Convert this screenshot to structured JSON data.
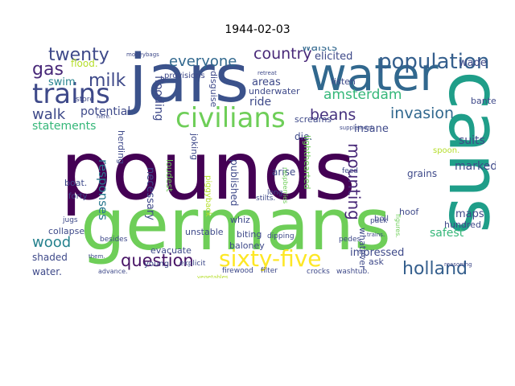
{
  "title": "1944-02-03",
  "words": [
    {
      "text": "pounds",
      "color": "#440154"
    },
    {
      "text": "germans",
      "color": "#6ece58"
    },
    {
      "text": "cans",
      "color": "#1f9e89"
    },
    {
      "text": "jars",
      "color": "#3b528b"
    },
    {
      "text": "water",
      "color": "#31688e"
    },
    {
      "text": "civilians",
      "color": "#6ece58"
    },
    {
      "text": "trains",
      "color": "#3e4989"
    },
    {
      "text": "population",
      "color": "#355f8d"
    },
    {
      "text": "sixty-five",
      "color": "#fde725"
    },
    {
      "text": "twenty",
      "color": "#3e4989"
    },
    {
      "text": "gas",
      "color": "#482878"
    },
    {
      "text": "milk",
      "color": "#3e4989"
    },
    {
      "text": "question",
      "color": "#471365"
    },
    {
      "text": "holland",
      "color": "#355f8d"
    },
    {
      "text": "country",
      "color": "#482878"
    },
    {
      "text": "everyone",
      "color": "#31688e"
    },
    {
      "text": "amsterdam",
      "color": "#35b779"
    },
    {
      "text": "beans",
      "color": "#46327e"
    },
    {
      "text": "invasion",
      "color": "#31688e"
    },
    {
      "text": "mounting",
      "color": "#482878"
    },
    {
      "text": "walk",
      "color": "#3e4989"
    },
    {
      "text": "wood",
      "color": "#26828e"
    },
    {
      "text": "impossible",
      "color": "#35b779"
    },
    {
      "text": "potential",
      "color": "#3e4989"
    },
    {
      "text": "statements",
      "color": "#35b779"
    },
    {
      "text": "flooding",
      "color": "#3e4989"
    },
    {
      "text": "responses",
      "color": "#2a788e"
    },
    {
      "text": "swim",
      "color": "#26828e"
    },
    {
      "text": "elicited",
      "color": "#3e4989"
    },
    {
      "text": "waists",
      "color": "#31688e"
    },
    {
      "text": "wade",
      "color": "#3e4989"
    },
    {
      "text": "ride",
      "color": "#3e4989"
    },
    {
      "text": "areas",
      "color": "#3e4989"
    },
    {
      "text": "insane",
      "color": "#3e4989"
    },
    {
      "text": "suits",
      "color": "#3e4989"
    },
    {
      "text": "marked",
      "color": "#3e4989"
    },
    {
      "text": "maps",
      "color": "#3e4989"
    },
    {
      "text": "safest",
      "color": "#35b779"
    },
    {
      "text": "impressed",
      "color": "#3e4989"
    },
    {
      "text": "shaded",
      "color": "#3e4989"
    },
    {
      "text": "water.",
      "color": "#3e4989"
    },
    {
      "text": "collapse",
      "color": "#3e4989"
    },
    {
      "text": "evacuate",
      "color": "#3e4989"
    },
    {
      "text": "unstable",
      "color": "#3e4989"
    },
    {
      "text": "necessary",
      "color": "#3e4989"
    },
    {
      "text": "published",
      "color": "#3e4989"
    },
    {
      "text": "whiz",
      "color": "#3e4989"
    },
    {
      "text": "biting",
      "color": "#3e4989"
    },
    {
      "text": "baloney",
      "color": "#3e4989"
    },
    {
      "text": "arise",
      "color": "#3e4989"
    },
    {
      "text": "die.",
      "color": "#3e4989"
    },
    {
      "text": "screams",
      "color": "#3e4989"
    },
    {
      "text": "listen",
      "color": "#3e4989"
    },
    {
      "text": "banter",
      "color": "#3e4989"
    },
    {
      "text": "grains",
      "color": "#3e4989"
    },
    {
      "text": "whatever",
      "color": "#3e4989"
    },
    {
      "text": "hundred",
      "color": "#3e4989"
    },
    {
      "text": "boil",
      "color": "#3e4989"
    },
    {
      "text": "hoof",
      "color": "#3e4989"
    },
    {
      "text": "ask",
      "color": "#3e4989"
    },
    {
      "text": "joking",
      "color": "#3e4989"
    },
    {
      "text": "loudest",
      "color": "#6ece58"
    },
    {
      "text": "herding",
      "color": "#3e4989"
    },
    {
      "text": "disguise",
      "color": "#3e4989"
    },
    {
      "text": "underwater",
      "color": "#3e4989"
    },
    {
      "text": "provisions",
      "color": "#3e4989"
    },
    {
      "text": "lighthearted",
      "color": "#6ece58"
    },
    {
      "text": "spoon.",
      "color": "#b5de2b"
    },
    {
      "text": "boat.",
      "color": "#3e4989"
    },
    {
      "text": "forty",
      "color": "#3e4989"
    },
    {
      "text": "young.",
      "color": "#3e4989"
    },
    {
      "text": "advance.",
      "color": "#3e4989"
    },
    {
      "text": "explicit",
      "color": "#3e4989"
    },
    {
      "text": "firewood",
      "color": "#3e4989"
    },
    {
      "text": "filter",
      "color": "#3e4989"
    },
    {
      "text": "crocks",
      "color": "#3e4989"
    },
    {
      "text": "washtub.",
      "color": "#3e4989"
    },
    {
      "text": "besides",
      "color": "#3e4989"
    },
    {
      "text": "jugs",
      "color": "#3e4989"
    },
    {
      "text": "dipping",
      "color": "#3e4989"
    },
    {
      "text": "stilts.",
      "color": "#3e4989"
    },
    {
      "text": "piggyback",
      "color": "#b5de2b"
    },
    {
      "text": "long",
      "color": "#3e4989"
    },
    {
      "text": "pedes",
      "color": "#3e4989"
    },
    {
      "text": "feed",
      "color": "#3e4989"
    },
    {
      "text": "pack",
      "color": "#3e4989"
    },
    {
      "text": "flood.",
      "color": "#b5de2b"
    },
    {
      "text": "store",
      "color": "#3e4989"
    },
    {
      "text": "storeroom.",
      "color": "#3e4989"
    },
    {
      "text": "back.",
      "color": "#3e4989"
    },
    {
      "text": "knapsacks",
      "color": "#3e4989"
    },
    {
      "text": "here.",
      "color": "#3e4989"
    },
    {
      "text": "them.",
      "color": "#3e4989"
    },
    {
      "text": "vegetables.",
      "color": "#b5de2b"
    },
    {
      "text": "trains.",
      "color": "#3e4989"
    },
    {
      "text": "figures.",
      "color": "#6ece58"
    },
    {
      "text": "raspberries",
      "color": "#6ece58"
    },
    {
      "text": "retreat",
      "color": "#3e4989"
    },
    {
      "text": "supplement",
      "color": "#3e4989"
    },
    {
      "text": "reasoning",
      "color": "#3e4989"
    },
    {
      "text": "moneybags",
      "color": "#3e4989"
    }
  ]
}
